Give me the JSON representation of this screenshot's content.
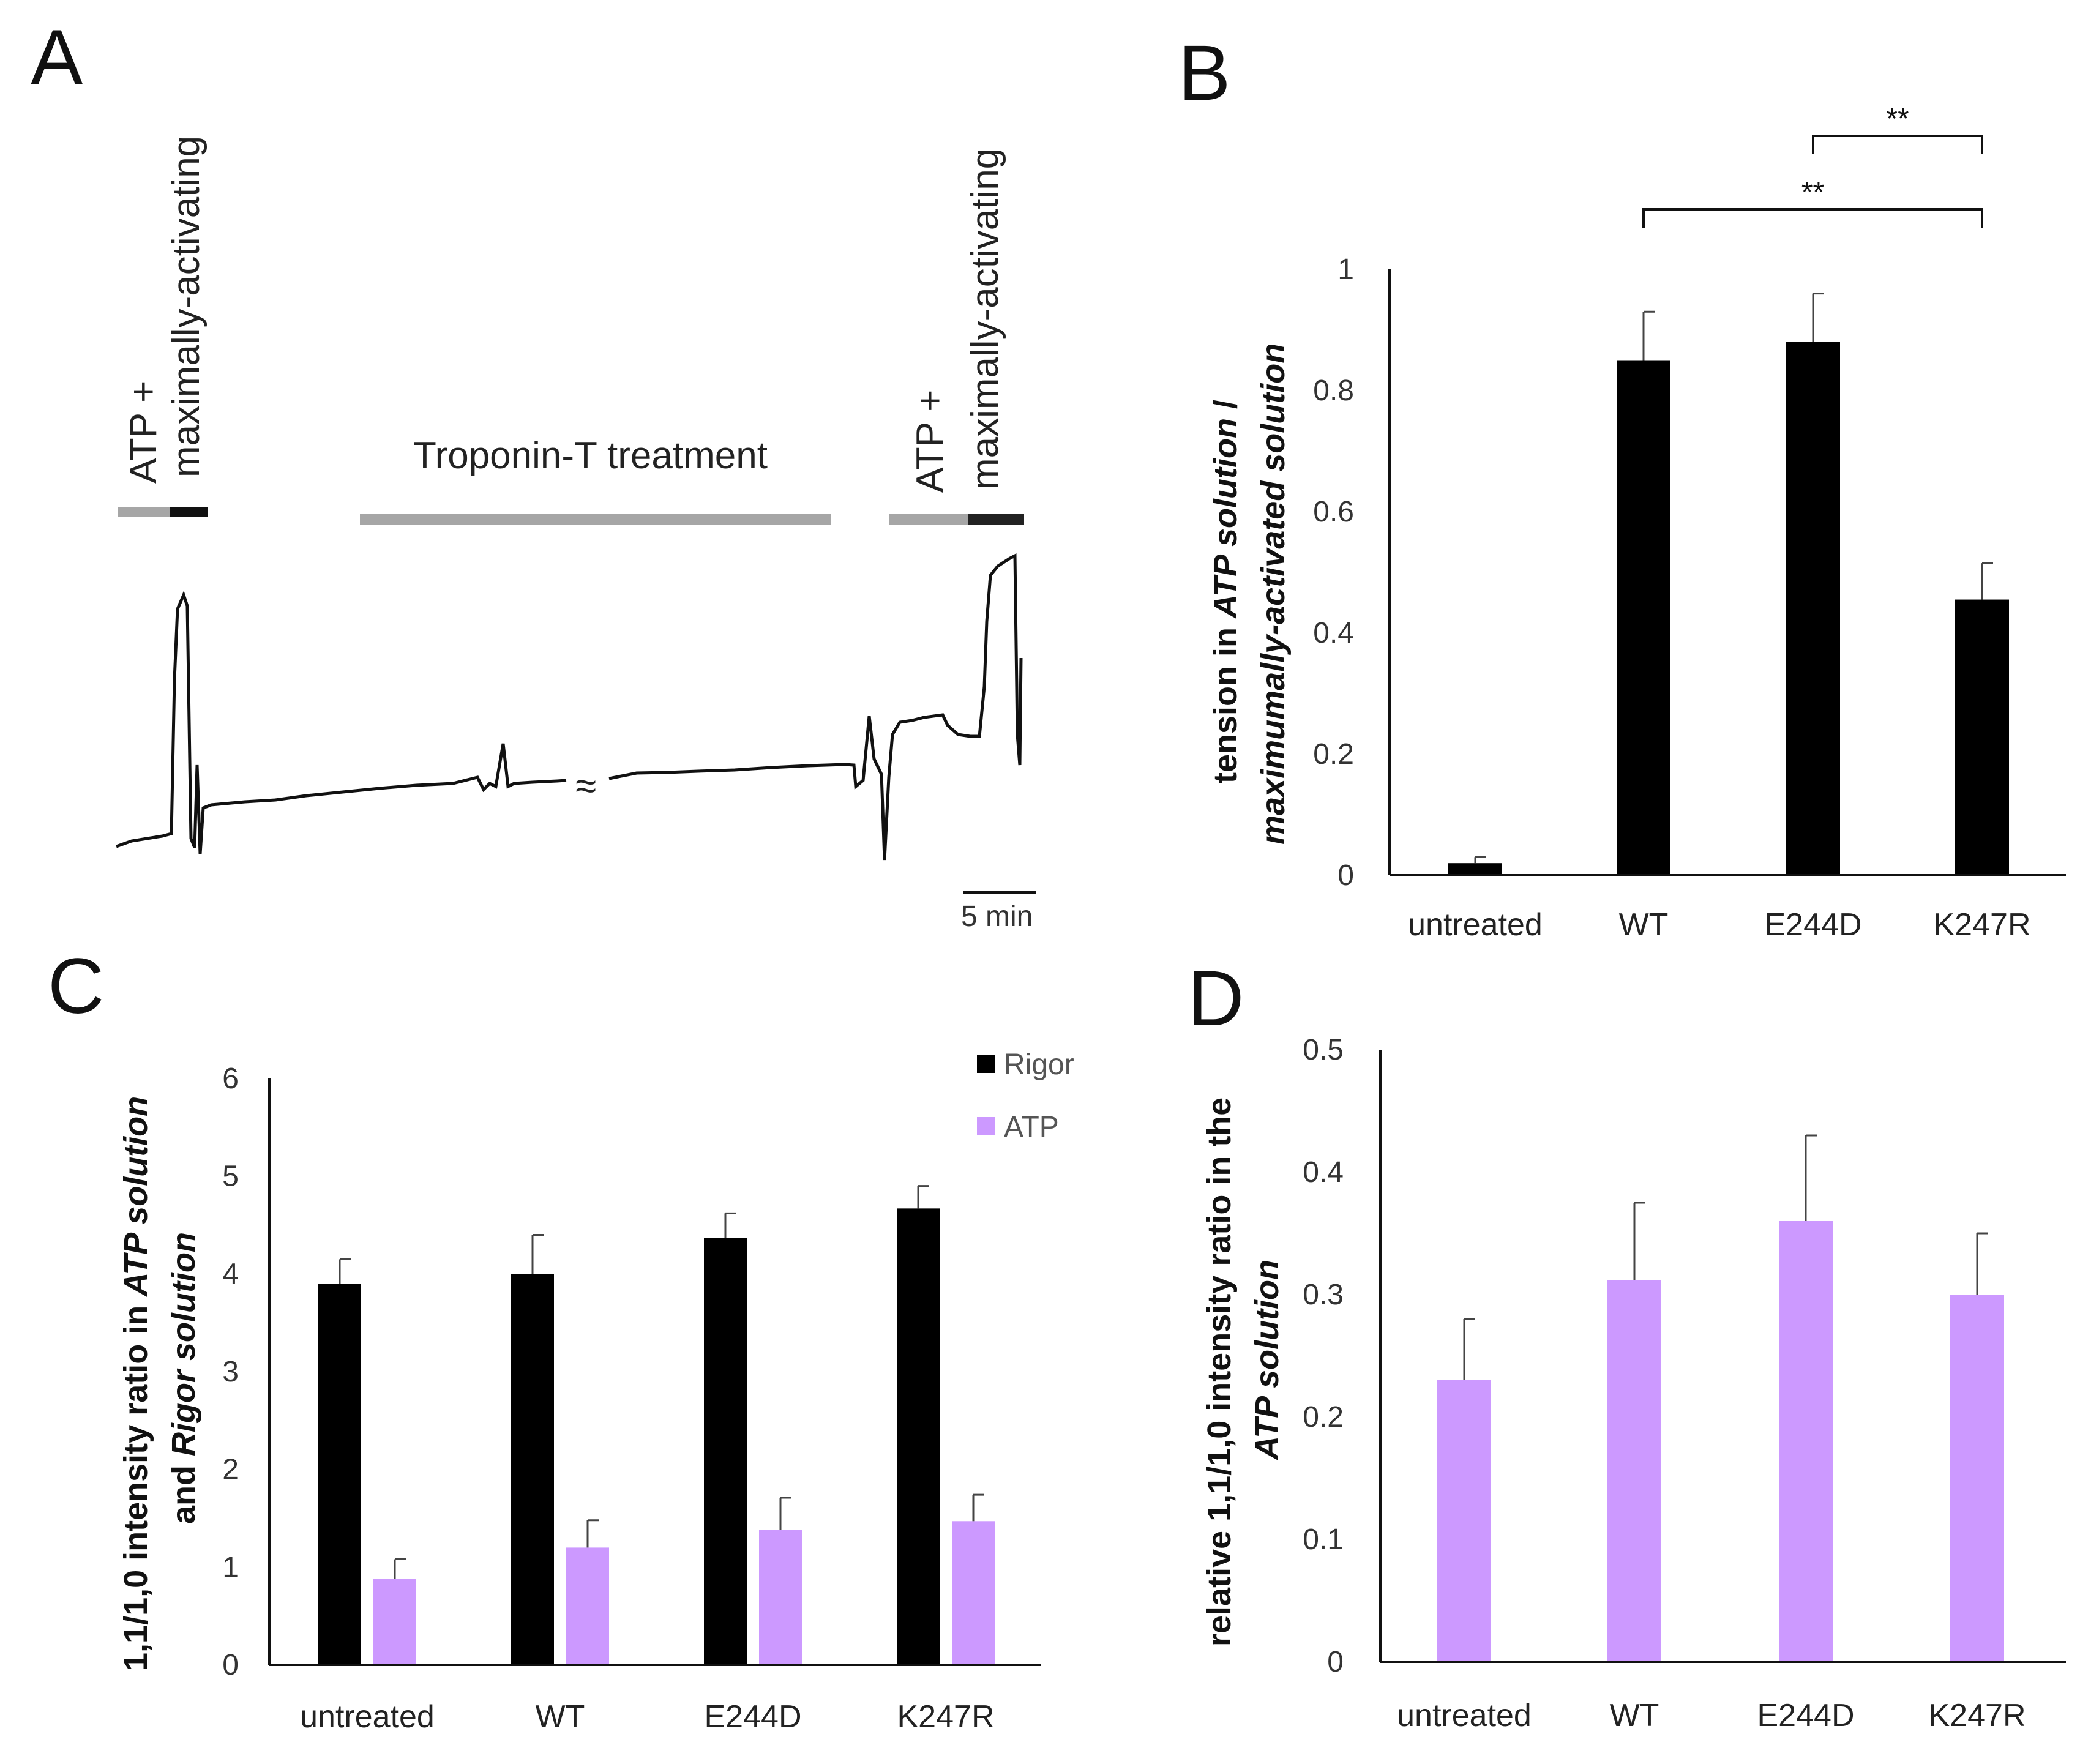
{
  "figure": {
    "panels": [
      "A",
      "B",
      "C",
      "D"
    ]
  },
  "panel_a": {
    "label_atp_1": "ATP +",
    "label_max_1": "maximally-activating",
    "label_troponin": "Troponin-T treatment",
    "label_atp_2": "ATP +",
    "label_max_2": "maximally-activating",
    "scale_bar": "5 min",
    "break_symbol": "≈"
  },
  "chart_data": [
    {
      "panel": "B",
      "type": "bar",
      "categories": [
        "untreated",
        "WT",
        "E244D",
        "K247R"
      ],
      "series": [
        {
          "name": "tension",
          "values": [
            0.02,
            0.85,
            0.88,
            0.455
          ],
          "errors": [
            0.01,
            0.08,
            0.08,
            0.06
          ],
          "color": "#000000"
        }
      ],
      "ylabel_plain": "tension in ",
      "ylabel_italic_1": "ATP solution",
      "ylabel_slash": " /",
      "ylabel_italic_2": "maximumally-activated solution",
      "yticks": [
        "0",
        "0.2",
        "0.4",
        "0.6",
        "0.8",
        "1"
      ],
      "ylim": [
        0,
        1
      ],
      "significance": [
        {
          "from": "E244D",
          "to": "K247R",
          "label": "**"
        },
        {
          "from": "WT",
          "to": "K247R",
          "label": "**"
        }
      ]
    },
    {
      "panel": "C",
      "type": "bar",
      "categories": [
        "untreated",
        "WT",
        "E244D",
        "K247R"
      ],
      "series": [
        {
          "name": "Rigor",
          "values": [
            3.9,
            4.0,
            4.37,
            4.67
          ],
          "errors": [
            0.25,
            0.4,
            0.25,
            0.23
          ],
          "color": "#000000"
        },
        {
          "name": "ATP",
          "values": [
            0.88,
            1.2,
            1.38,
            1.47
          ],
          "errors": [
            0.2,
            0.28,
            0.33,
            0.27
          ],
          "color": "#cc99ff"
        }
      ],
      "ylabel_line1_plain": "1,1/1,0 intensity ratio in ",
      "ylabel_line1_italic": "ATP solution",
      "ylabel_line2_plain": "and ",
      "ylabel_line2_italic": "Rigor solution",
      "yticks": [
        "0",
        "1",
        "2",
        "3",
        "4",
        "5",
        "6"
      ],
      "ylim": [
        0,
        6
      ]
    },
    {
      "panel": "D",
      "type": "bar",
      "categories": [
        "untreated",
        "WT",
        "E244D",
        "K247R"
      ],
      "series": [
        {
          "name": "ATP",
          "values": [
            0.23,
            0.312,
            0.36,
            0.3
          ],
          "errors": [
            0.05,
            0.063,
            0.07,
            0.05
          ],
          "color": "#cc99ff"
        }
      ],
      "ylabel_line1": "relative 1,1/1,0 intensity ratio in the",
      "ylabel_line2_italic": "ATP solution",
      "yticks": [
        "0",
        "0.1",
        "0.2",
        "0.3",
        "0.4",
        "0.5"
      ],
      "ylim": [
        0,
        0.5
      ]
    }
  ]
}
